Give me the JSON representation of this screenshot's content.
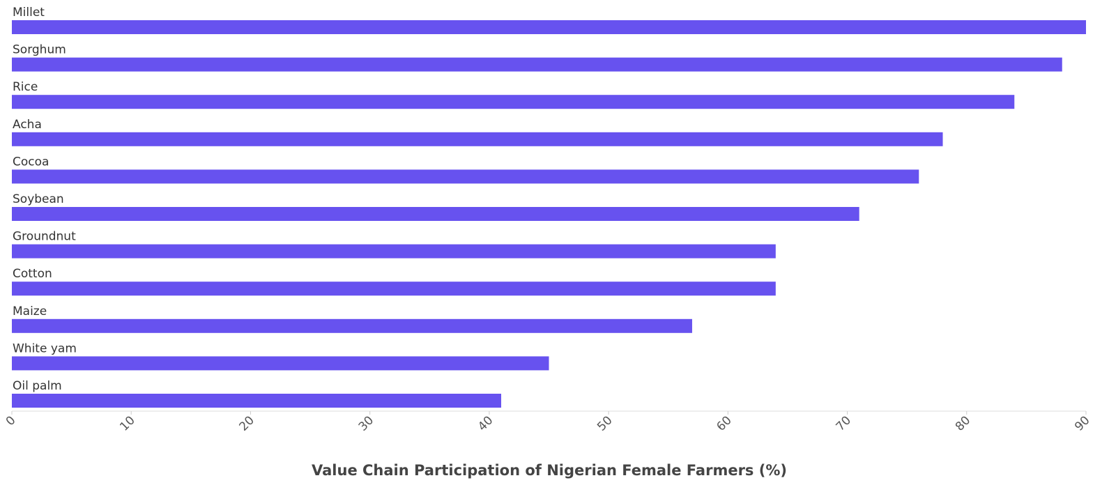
{
  "chart_data": {
    "type": "bar",
    "xlabel": "Value Chain Participation of Nigerian Female Farmers (%)",
    "categories": [
      "Millet",
      "Sorghum",
      "Rice",
      "Acha",
      "Cocoa",
      "Soybean",
      "Groundnut",
      "Cotton",
      "Maize",
      "White yam",
      "Oil palm"
    ],
    "values": [
      90,
      88,
      84,
      78,
      76,
      71,
      64,
      64,
      57,
      45,
      41
    ],
    "color": "#6752ef",
    "xlim": [
      0,
      90
    ],
    "xticks": [
      0,
      10,
      20,
      30,
      40,
      50,
      60,
      70,
      80,
      90
    ]
  }
}
